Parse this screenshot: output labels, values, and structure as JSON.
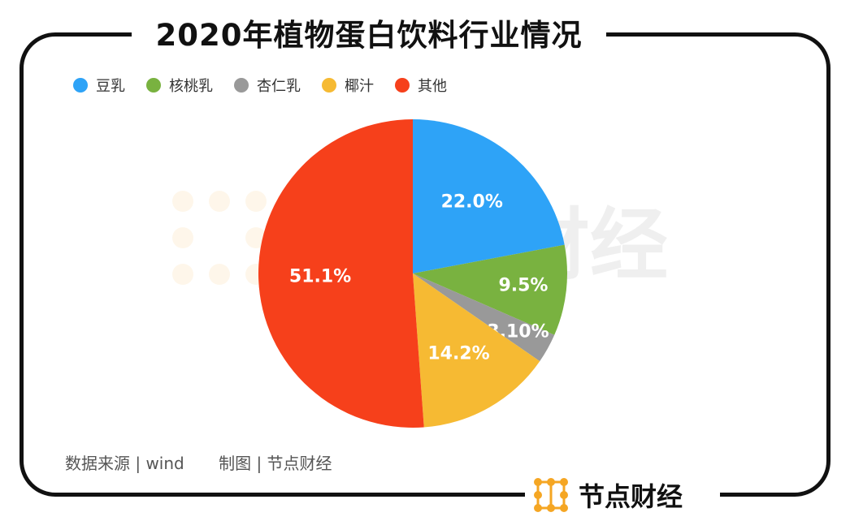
{
  "title": "2020年植物蛋白饮料行业情况",
  "colors": {
    "blue": "#2EA3F7",
    "green": "#79B240",
    "gray": "#999999",
    "yellow": "#F6BA33",
    "red": "#F6401B",
    "brand_orange": "#F5A623"
  },
  "chart_data": {
    "type": "pie",
    "title": "2020年植物蛋白饮料行业情况",
    "legend_position": "top-left",
    "slices": [
      {
        "name": "豆乳",
        "value": 22.0,
        "label": "22.0%",
        "color": "#2EA3F7"
      },
      {
        "name": "核桃乳",
        "value": 9.5,
        "label": "9.5%",
        "color": "#79B240"
      },
      {
        "name": "杏仁乳",
        "value": 3.1,
        "label": "3.10%",
        "color": "#999999"
      },
      {
        "name": "椰汁",
        "value": 14.2,
        "label": "14.2%",
        "color": "#F6BA33"
      },
      {
        "name": "其他",
        "value": 51.1,
        "label": "51.1%",
        "color": "#F6401B"
      }
    ]
  },
  "footer": {
    "source": "数据来源 | wind",
    "maker": "制图 | 节点财经"
  },
  "brand": {
    "name": "节点财经",
    "logo_icon": "node-grid-logo-icon"
  },
  "watermark": {
    "text": "财经",
    "logo_icon": "node-grid-logo-icon"
  }
}
